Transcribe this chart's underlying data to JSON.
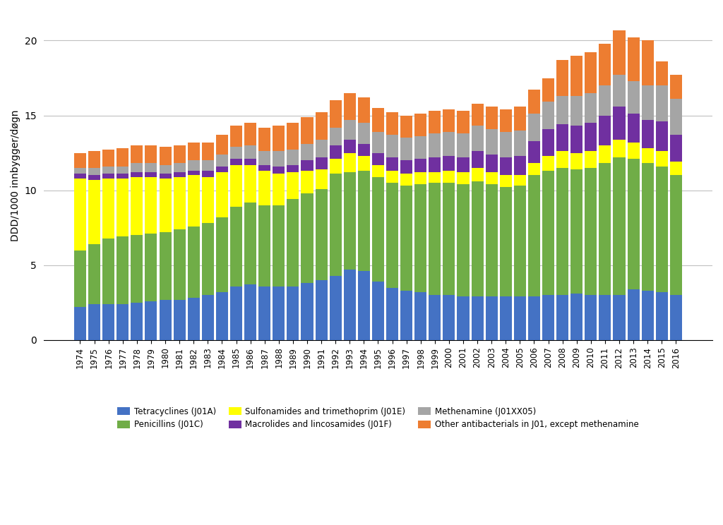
{
  "years": [
    1974,
    1975,
    1976,
    1977,
    1978,
    1979,
    1980,
    1981,
    1982,
    1983,
    1984,
    1985,
    1986,
    1987,
    1988,
    1989,
    1990,
    1991,
    1992,
    1993,
    1994,
    1995,
    1996,
    1997,
    1998,
    1999,
    2000,
    2001,
    2002,
    2003,
    2004,
    2005,
    2006,
    2007,
    2008,
    2009,
    2010,
    2011,
    2012,
    2013,
    2014,
    2015,
    2016
  ],
  "tetracyclines": [
    2.2,
    2.4,
    2.4,
    2.4,
    2.5,
    2.6,
    2.7,
    2.7,
    2.8,
    3.0,
    3.2,
    3.6,
    3.7,
    3.6,
    3.6,
    3.6,
    3.8,
    4.0,
    4.3,
    4.7,
    4.6,
    3.9,
    3.5,
    3.3,
    3.2,
    3.0,
    3.0,
    2.9,
    2.9,
    2.9,
    2.9,
    2.9,
    2.9,
    3.0,
    3.0,
    3.1,
    3.0,
    3.0,
    3.0,
    3.4,
    3.3,
    3.2,
    3.0
  ],
  "penicillins": [
    3.8,
    4.0,
    4.4,
    4.5,
    4.5,
    4.5,
    4.5,
    4.7,
    4.8,
    4.8,
    5.0,
    5.3,
    5.5,
    5.4,
    5.4,
    5.8,
    6.0,
    6.1,
    6.8,
    6.5,
    6.7,
    7.0,
    7.0,
    7.0,
    7.2,
    7.5,
    7.5,
    7.5,
    7.7,
    7.5,
    7.3,
    7.4,
    8.1,
    8.3,
    8.5,
    8.3,
    8.5,
    8.8,
    9.2,
    8.7,
    8.5,
    8.4,
    8.0
  ],
  "sulfonamides": [
    4.8,
    4.3,
    4.0,
    3.9,
    3.9,
    3.8,
    3.6,
    3.5,
    3.4,
    3.1,
    3.0,
    2.8,
    2.5,
    2.3,
    2.1,
    1.8,
    1.5,
    1.3,
    1.0,
    1.3,
    1.0,
    0.8,
    0.8,
    0.8,
    0.8,
    0.7,
    0.8,
    0.8,
    0.9,
    0.8,
    0.8,
    0.7,
    0.8,
    1.0,
    1.1,
    1.1,
    1.1,
    1.2,
    1.2,
    1.1,
    1.0,
    1.0,
    0.9
  ],
  "macrolides": [
    0.3,
    0.3,
    0.3,
    0.3,
    0.3,
    0.3,
    0.3,
    0.3,
    0.3,
    0.4,
    0.4,
    0.4,
    0.4,
    0.4,
    0.5,
    0.5,
    0.7,
    0.8,
    0.9,
    0.9,
    0.8,
    0.8,
    0.9,
    0.9,
    0.9,
    1.0,
    1.0,
    1.0,
    1.1,
    1.2,
    1.2,
    1.3,
    1.5,
    1.8,
    1.8,
    1.8,
    1.9,
    2.0,
    2.2,
    1.9,
    1.9,
    2.0,
    1.8
  ],
  "methenamine": [
    0.4,
    0.5,
    0.5,
    0.5,
    0.6,
    0.6,
    0.6,
    0.6,
    0.7,
    0.7,
    0.8,
    0.8,
    0.9,
    0.9,
    1.0,
    1.0,
    1.1,
    1.2,
    1.2,
    1.3,
    1.4,
    1.4,
    1.5,
    1.5,
    1.5,
    1.6,
    1.6,
    1.6,
    1.7,
    1.7,
    1.7,
    1.7,
    1.8,
    1.8,
    1.9,
    2.0,
    2.0,
    2.0,
    2.1,
    2.2,
    2.3,
    2.4,
    2.4
  ],
  "other": [
    1.0,
    1.1,
    1.1,
    1.2,
    1.2,
    1.2,
    1.2,
    1.2,
    1.2,
    1.2,
    1.3,
    1.4,
    1.5,
    1.6,
    1.7,
    1.8,
    1.8,
    1.8,
    1.8,
    1.8,
    1.7,
    1.6,
    1.5,
    1.5,
    1.5,
    1.5,
    1.5,
    1.5,
    1.5,
    1.5,
    1.5,
    1.6,
    1.6,
    1.6,
    2.4,
    2.7,
    2.7,
    2.8,
    3.0,
    2.9,
    3.0,
    1.6,
    1.6
  ],
  "colors": {
    "tetracyclines": "#4472C4",
    "penicillins": "#70AD47",
    "sulfonamides": "#FFFF00",
    "macrolides": "#7030A0",
    "methenamine": "#A5A5A5",
    "other": "#ED7D31"
  },
  "ylabel": "DDD/1000 innbygger/døgn",
  "ylim": [
    0,
    22
  ],
  "yticks": [
    0,
    5,
    10,
    15,
    20
  ],
  "legend": {
    "tetracyclines": "Tetracyclines (J01A)",
    "penicillins": "Penicillins (J01C)",
    "sulfonamides": "Sulfonamides and trimethoprim (J01E)",
    "macrolides": "Macrolides and lincosamides (J01F)",
    "methenamine": "Methenamine (J01XX05)",
    "other": "Other antibacterials in J01, except methenamine"
  },
  "background_color": "#FFFFFF"
}
